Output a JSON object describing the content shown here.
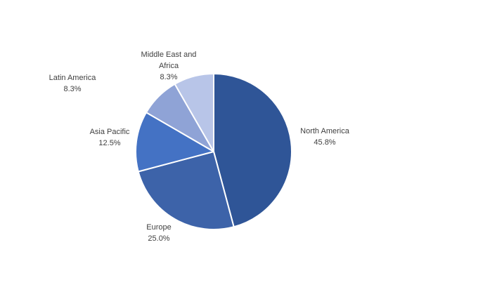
{
  "chart_data": {
    "type": "pie",
    "title": "",
    "legend": "none",
    "labels_position": "outside",
    "label_format": "category name + percentage",
    "start_angle_deg": 0,
    "direction": "clockwise",
    "slice_border_color": "#FFFFFF",
    "categories": [
      "North America",
      "Europe",
      "Asia Pacific",
      "Latin America",
      "Middle East and Africa"
    ],
    "values": [
      45.8,
      25.0,
      12.5,
      8.3,
      8.3
    ],
    "slices": [
      {
        "label": "North America",
        "pct_label": "45.8%",
        "value": 45.8,
        "color": "#2F5597"
      },
      {
        "label": "Europe",
        "pct_label": "25.0%",
        "value": 25.0,
        "color": "#3D63A9"
      },
      {
        "label": "Asia Pacific",
        "pct_label": "12.5%",
        "value": 12.5,
        "color": "#4472C4"
      },
      {
        "label": "Latin America",
        "pct_label": "8.3%",
        "value": 8.3,
        "color": "#8FA3D6"
      },
      {
        "label": "Middle East and Africa",
        "pct_label": "8.3%",
        "value": 8.3,
        "color": "#B8C5E8"
      }
    ],
    "text_color": "#404040"
  }
}
